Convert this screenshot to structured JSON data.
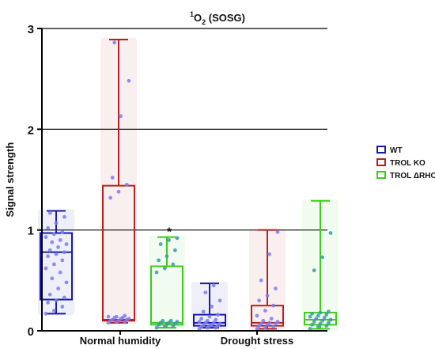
{
  "chart_data": {
    "type": "box",
    "title_base": "1",
    "title_main": "O",
    "title_sub": "2",
    "title_tail": " (SOSG)",
    "ylabel": "Signal strength",
    "ylim": [
      0,
      3
    ],
    "yticks": [
      "0",
      "1",
      "2",
      "3"
    ],
    "reference_lines": [
      1,
      2,
      3
    ],
    "categories": [
      "Normal humidity",
      "Drought stress"
    ],
    "legend_position": "right",
    "series": [
      {
        "name": "WT",
        "color": "#1a1aa8",
        "point_color": "#7b7bf0",
        "boxes": [
          {
            "min": 0.17,
            "q1": 0.31,
            "median": 0.78,
            "q3": 0.97,
            "max": 1.19,
            "points": [
              0.17,
              0.2,
              0.24,
              0.28,
              0.3,
              0.33,
              0.36,
              0.42,
              0.48,
              0.52,
              0.58,
              0.62,
              0.66,
              0.7,
              0.74,
              0.76,
              0.78,
              0.8,
              0.83,
              0.86,
              0.88,
              0.9,
              0.93,
              0.96,
              0.98,
              1.02,
              1.07,
              1.13,
              1.17
            ]
          },
          {
            "min": 0.03,
            "q1": 0.05,
            "median": 0.08,
            "q3": 0.16,
            "max": 0.47,
            "points": [
              0.02,
              0.03,
              0.03,
              0.04,
              0.05,
              0.05,
              0.06,
              0.06,
              0.07,
              0.08,
              0.08,
              0.09,
              0.1,
              0.11,
              0.12,
              0.14,
              0.16,
              0.19,
              0.24,
              0.3,
              0.38,
              0.45
            ]
          }
        ]
      },
      {
        "name": "TROL KO",
        "color": "#b22222",
        "point_color": "#7b7bf0",
        "boxes": [
          {
            "min": 0.08,
            "q1": 0.1,
            "median": 0.11,
            "q3": 1.44,
            "max": 2.89,
            "points": [
              0.08,
              0.09,
              0.09,
              0.1,
              0.1,
              0.11,
              0.11,
              0.12,
              0.12,
              0.13,
              0.13,
              0.14,
              0.14,
              0.15,
              1.32,
              1.38,
              1.45,
              1.52,
              2.13,
              2.48,
              2.86
            ]
          },
          {
            "min": 0.02,
            "q1": 0.05,
            "median": 0.08,
            "q3": 0.25,
            "max": 1.0,
            "points": [
              0.02,
              0.03,
              0.04,
              0.05,
              0.06,
              0.07,
              0.07,
              0.08,
              0.09,
              0.1,
              0.12,
              0.15,
              0.2,
              0.25,
              0.3,
              0.35,
              0.42,
              0.5,
              0.76,
              0.98
            ]
          }
        ]
      },
      {
        "name": "TROL ΔRHO",
        "color": "#3ccc1e",
        "point_color": "#3a9aa8",
        "boxes": [
          {
            "min": 0.03,
            "q1": 0.06,
            "median": 0.08,
            "q3": 0.64,
            "max": 0.93,
            "points": [
              0.03,
              0.04,
              0.05,
              0.06,
              0.07,
              0.07,
              0.08,
              0.08,
              0.09,
              0.1,
              0.1,
              0.58,
              0.62,
              0.66,
              0.7,
              0.74,
              0.8,
              0.86,
              0.9,
              0.92
            ]
          },
          {
            "min": 0.02,
            "q1": 0.06,
            "median": 0.11,
            "q3": 0.18,
            "max": 1.29,
            "points": [
              0.02,
              0.04,
              0.05,
              0.06,
              0.07,
              0.08,
              0.09,
              0.1,
              0.11,
              0.12,
              0.13,
              0.14,
              0.15,
              0.16,
              0.17,
              0.18,
              0.19,
              0.6,
              0.73,
              0.97
            ]
          }
        ]
      }
    ],
    "annotations": [
      {
        "text": "*",
        "category": 0,
        "series": 2
      }
    ]
  }
}
